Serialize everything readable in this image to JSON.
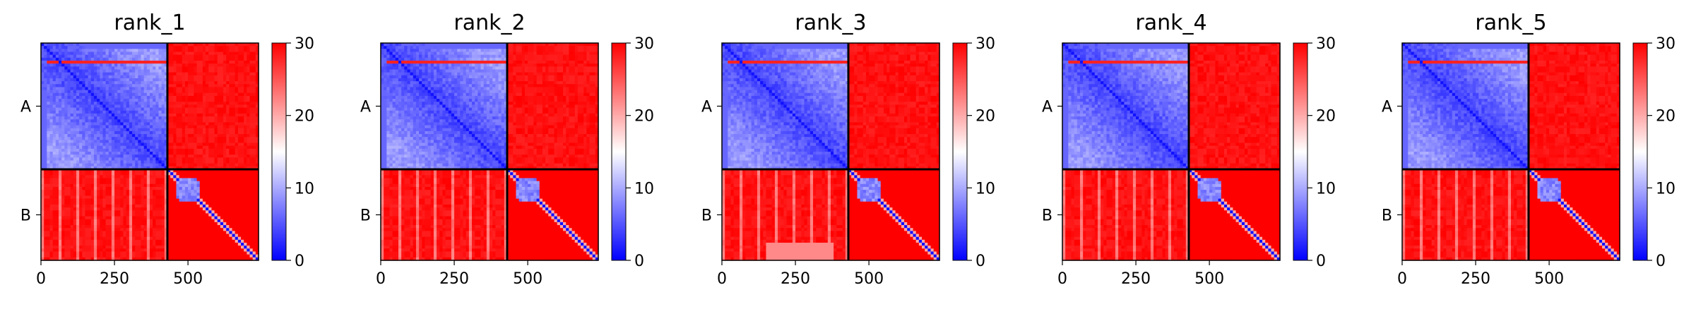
{
  "chart_data": {
    "type": "heatmap",
    "description_kind": "predicted aligned error matrices",
    "panels": [
      {
        "title": "rank_1",
        "variant": 1
      },
      {
        "title": "rank_2",
        "variant": 2
      },
      {
        "title": "rank_3",
        "variant": 3
      },
      {
        "title": "rank_4",
        "variant": 4
      },
      {
        "title": "rank_5",
        "variant": 5
      }
    ],
    "n_residues": 740,
    "chain_boundary": 430,
    "chains": [
      "A",
      "B"
    ],
    "xticks": [
      0,
      250,
      500
    ],
    "xtick_labels": [
      "0",
      "250",
      "500"
    ],
    "colorbar": {
      "min": 0,
      "max": 30,
      "ticks": [
        0,
        10,
        20,
        30
      ],
      "tick_labels": [
        "0",
        "10",
        "20",
        "30"
      ],
      "colors": [
        "#0000ff",
        "#ffffff",
        "#ff0000"
      ]
    },
    "chain_separator_color": "#000000"
  }
}
